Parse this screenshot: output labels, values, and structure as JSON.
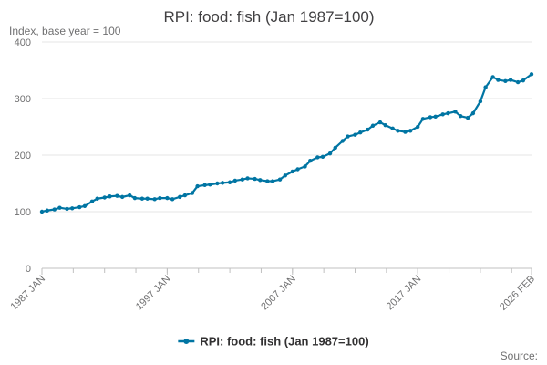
{
  "chart_data": {
    "type": "line",
    "title": "RPI: food: fish (Jan 1987=100)",
    "ylabel": "Index, base year = 100",
    "xlabel": "",
    "ylim": [
      0,
      400
    ],
    "y_ticks": [
      "0",
      "100",
      "200",
      "300",
      "400"
    ],
    "x_tick_labels": [
      "1987 JAN",
      "1997 JAN",
      "2007 JAN",
      "2017 JAN",
      "2026 FEB"
    ],
    "grid": true,
    "legend_position": "bottom",
    "source_label": "Source:",
    "series": [
      {
        "name": "RPI: food: fish (Jan 1987=100)",
        "color": "#0075a3",
        "points": [
          [
            "1987-01",
            100
          ],
          [
            "1987-06",
            102
          ],
          [
            "1988-01",
            104
          ],
          [
            "1988-06",
            107
          ],
          [
            "1989-01",
            105
          ],
          [
            "1989-06",
            106
          ],
          [
            "1990-01",
            108
          ],
          [
            "1990-06",
            110
          ],
          [
            "1991-01",
            118
          ],
          [
            "1991-06",
            123
          ],
          [
            "1992-01",
            125
          ],
          [
            "1992-06",
            127
          ],
          [
            "1993-01",
            128
          ],
          [
            "1993-06",
            126
          ],
          [
            "1994-01",
            129
          ],
          [
            "1994-06",
            124
          ],
          [
            "1995-01",
            123
          ],
          [
            "1995-06",
            123
          ],
          [
            "1996-01",
            122
          ],
          [
            "1996-06",
            124
          ],
          [
            "1997-01",
            124
          ],
          [
            "1997-06",
            122
          ],
          [
            "1998-01",
            126
          ],
          [
            "1998-06",
            129
          ],
          [
            "1999-01",
            133
          ],
          [
            "1999-06",
            145
          ],
          [
            "2000-01",
            147
          ],
          [
            "2000-06",
            148
          ],
          [
            "2001-01",
            150
          ],
          [
            "2001-06",
            151
          ],
          [
            "2002-01",
            152
          ],
          [
            "2002-06",
            155
          ],
          [
            "2003-01",
            157
          ],
          [
            "2003-06",
            159
          ],
          [
            "2004-01",
            158
          ],
          [
            "2004-06",
            156
          ],
          [
            "2005-01",
            154
          ],
          [
            "2005-06",
            154
          ],
          [
            "2006-01",
            157
          ],
          [
            "2006-06",
            164
          ],
          [
            "2007-01",
            171
          ],
          [
            "2007-06",
            175
          ],
          [
            "2008-01",
            180
          ],
          [
            "2008-06",
            190
          ],
          [
            "2009-01",
            196
          ],
          [
            "2009-06",
            197
          ],
          [
            "2010-01",
            203
          ],
          [
            "2010-06",
            213
          ],
          [
            "2011-01",
            225
          ],
          [
            "2011-06",
            233
          ],
          [
            "2012-01",
            236
          ],
          [
            "2012-06",
            240
          ],
          [
            "2013-01",
            245
          ],
          [
            "2013-06",
            252
          ],
          [
            "2014-01",
            258
          ],
          [
            "2014-06",
            253
          ],
          [
            "2015-01",
            247
          ],
          [
            "2015-06",
            243
          ],
          [
            "2016-01",
            241
          ],
          [
            "2016-06",
            243
          ],
          [
            "2017-01",
            250
          ],
          [
            "2017-06",
            264
          ],
          [
            "2018-01",
            267
          ],
          [
            "2018-06",
            268
          ],
          [
            "2019-01",
            272
          ],
          [
            "2019-06",
            274
          ],
          [
            "2020-01",
            277
          ],
          [
            "2020-06",
            269
          ],
          [
            "2021-01",
            266
          ],
          [
            "2021-06",
            274
          ],
          [
            "2022-01",
            295
          ],
          [
            "2022-06",
            320
          ],
          [
            "2023-01",
            338
          ],
          [
            "2023-06",
            333
          ],
          [
            "2024-01",
            331
          ],
          [
            "2024-06",
            333
          ],
          [
            "2025-01",
            329
          ],
          [
            "2025-06",
            332
          ],
          [
            "2026-02",
            343
          ]
        ]
      }
    ]
  }
}
